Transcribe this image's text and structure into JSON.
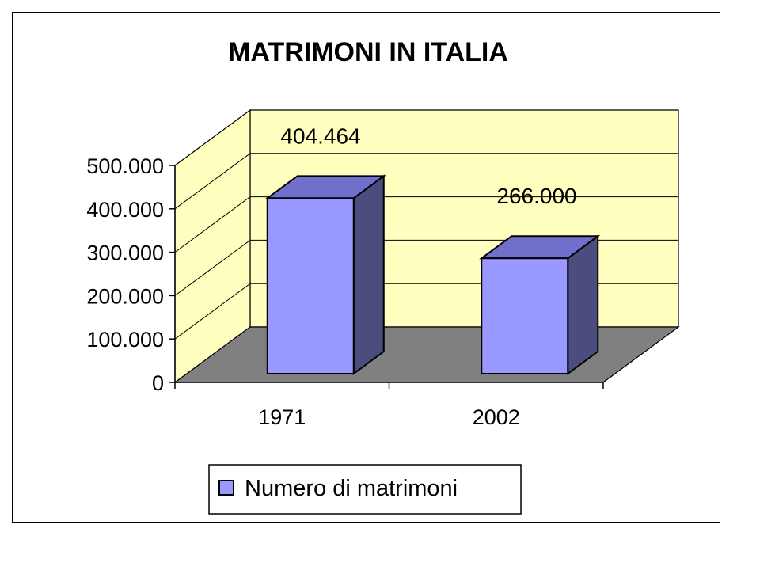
{
  "chart_data": {
    "type": "bar",
    "title": "MATRIMONI IN ITALIA",
    "categories": [
      "1971",
      "2002"
    ],
    "series": [
      {
        "name": "Numero di matrimoni",
        "values": [
          404464,
          266000
        ]
      }
    ],
    "data_labels": [
      "404.464",
      "266.000"
    ],
    "y_ticks": [
      "0",
      "100.000",
      "200.000",
      "300.000",
      "400.000",
      "500.000"
    ],
    "ylim": [
      0,
      500000
    ],
    "grid": true,
    "legend": "bottom",
    "style": "3d",
    "colors": {
      "bar_front": "#9999ff",
      "bar_top": "#7070cc",
      "bar_side": "#4b4d7e",
      "back_wall": "#ffffc0",
      "side_wall": "#ffffc0",
      "floor": "#808080"
    }
  }
}
